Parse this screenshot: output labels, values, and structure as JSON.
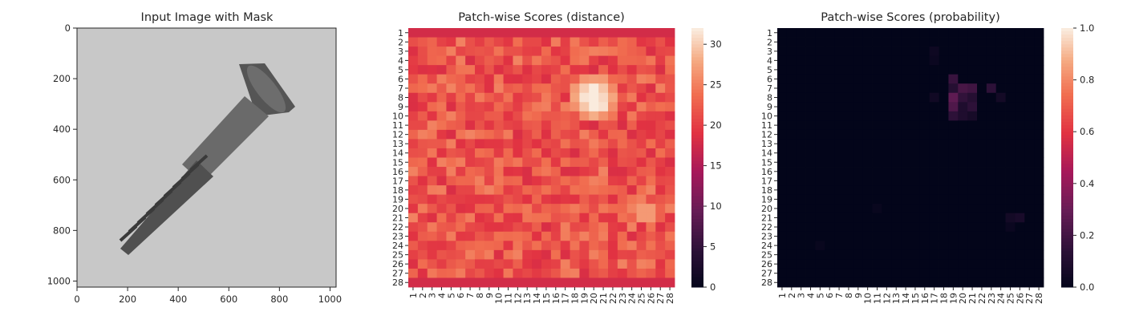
{
  "figure": {
    "panels": [
      {
        "title": "Input Image with Mask"
      },
      {
        "title": "Patch-wise Scores (distance)"
      },
      {
        "title": "Patch-wise Scores (probability)"
      }
    ]
  },
  "chart_data": [
    {
      "type": "image",
      "title": "Input Image with Mask",
      "image_description_color": "#c8c8c8",
      "x_ticks": [
        0,
        200,
        400,
        600,
        800,
        1000
      ],
      "y_ticks": [
        0,
        200,
        400,
        600,
        800,
        1000
      ],
      "xlim": [
        0,
        1024
      ],
      "ylim": [
        1024,
        0
      ]
    },
    {
      "type": "heatmap",
      "title": "Patch-wise Scores (distance)",
      "rows": 28,
      "cols": 28,
      "x_tick_labels": [
        "1",
        "2",
        "3",
        "4",
        "5",
        "6",
        "7",
        "8",
        "9",
        "10",
        "11",
        "12",
        "13",
        "14",
        "15",
        "16",
        "17",
        "18",
        "19",
        "20",
        "21",
        "22",
        "23",
        "24",
        "25",
        "26",
        "27",
        "28"
      ],
      "y_tick_labels": [
        "1",
        "2",
        "3",
        "4",
        "5",
        "6",
        "7",
        "8",
        "9",
        "10",
        "11",
        "12",
        "13",
        "14",
        "15",
        "16",
        "17",
        "18",
        "19",
        "20",
        "21",
        "22",
        "23",
        "24",
        "25",
        "26",
        "27",
        "28"
      ],
      "colorbar": {
        "min": 0,
        "max": 32,
        "ticks": [
          0,
          5,
          10,
          15,
          20,
          25,
          30
        ]
      },
      "colormap": "rocket",
      "values_summary": {
        "baseline": 22,
        "hotspot_rows": [
          6,
          10
        ],
        "hotspot_cols": [
          18,
          22
        ],
        "hotspot_peak": 32,
        "secondary_hotspot": {
          "rows": [
            20,
            21
          ],
          "cols": [
            25,
            26
          ],
          "value": 27
        }
      }
    },
    {
      "type": "heatmap",
      "title": "Patch-wise Scores (probability)",
      "rows": 28,
      "cols": 28,
      "x_tick_labels": [
        "1",
        "2",
        "3",
        "4",
        "5",
        "6",
        "7",
        "8",
        "9",
        "10",
        "11",
        "12",
        "13",
        "14",
        "15",
        "16",
        "17",
        "18",
        "19",
        "20",
        "21",
        "22",
        "23",
        "24",
        "25",
        "26",
        "27",
        "28"
      ],
      "y_tick_labels": [
        "1",
        "2",
        "3",
        "4",
        "5",
        "6",
        "7",
        "8",
        "9",
        "10",
        "11",
        "12",
        "13",
        "14",
        "15",
        "16",
        "17",
        "18",
        "19",
        "20",
        "21",
        "22",
        "23",
        "24",
        "25",
        "26",
        "27",
        "28"
      ],
      "colorbar": {
        "min": 0.0,
        "max": 1.0,
        "ticks": [
          "0.0",
          "0.2",
          "0.4",
          "0.6",
          "0.8",
          "1.0"
        ]
      },
      "colormap": "rocket",
      "values_summary": {
        "baseline": 0.0,
        "cells": [
          {
            "row": 6,
            "col": 19,
            "value": 0.18
          },
          {
            "row": 7,
            "col": 19,
            "value": 0.12
          },
          {
            "row": 7,
            "col": 20,
            "value": 0.22
          },
          {
            "row": 7,
            "col": 21,
            "value": 0.2
          },
          {
            "row": 7,
            "col": 23,
            "value": 0.15
          },
          {
            "row": 8,
            "col": 19,
            "value": 0.28
          },
          {
            "row": 8,
            "col": 20,
            "value": 0.16
          },
          {
            "row": 8,
            "col": 21,
            "value": 0.12
          },
          {
            "row": 8,
            "col": 24,
            "value": 0.06
          },
          {
            "row": 8,
            "col": 17,
            "value": 0.05
          },
          {
            "row": 9,
            "col": 19,
            "value": 0.24
          },
          {
            "row": 9,
            "col": 20,
            "value": 0.1
          },
          {
            "row": 9,
            "col": 21,
            "value": 0.15
          },
          {
            "row": 10,
            "col": 19,
            "value": 0.15
          },
          {
            "row": 10,
            "col": 20,
            "value": 0.1
          },
          {
            "row": 10,
            "col": 21,
            "value": 0.07
          },
          {
            "row": 3,
            "col": 17,
            "value": 0.04
          },
          {
            "row": 4,
            "col": 17,
            "value": 0.03
          },
          {
            "row": 21,
            "col": 25,
            "value": 0.06
          },
          {
            "row": 21,
            "col": 26,
            "value": 0.08
          },
          {
            "row": 22,
            "col": 25,
            "value": 0.03
          },
          {
            "row": 20,
            "col": 11,
            "value": 0.02
          },
          {
            "row": 24,
            "col": 5,
            "value": 0.02
          }
        ]
      }
    }
  ]
}
